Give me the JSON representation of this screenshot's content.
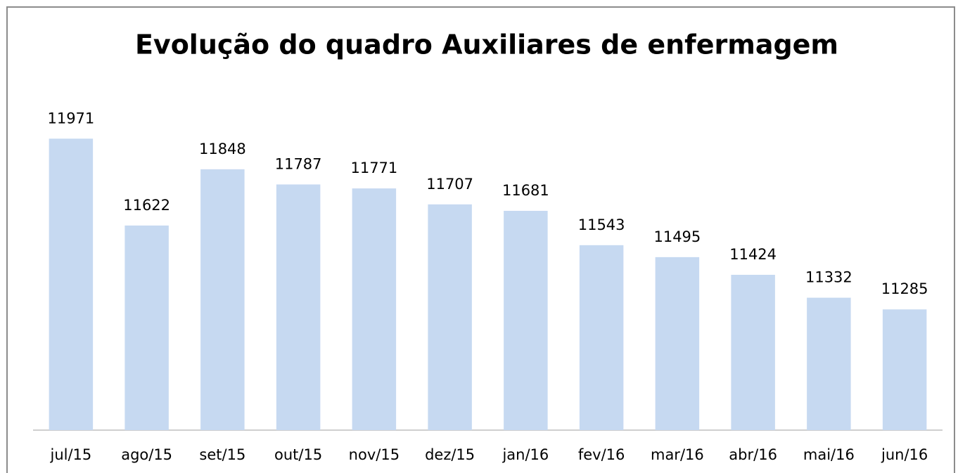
{
  "chart_data": {
    "type": "bar",
    "title": "Evolução do quadro Auxiliares de enfermagem",
    "categories": [
      "jul/15",
      "ago/15",
      "set/15",
      "out/15",
      "nov/15",
      "dez/15",
      "jan/16",
      "fev/16",
      "mar/16",
      "abr/16",
      "mai/16",
      "jun/16"
    ],
    "values": [
      11971,
      11622,
      11848,
      11787,
      11771,
      11707,
      11681,
      11543,
      11495,
      11424,
      11332,
      11285
    ],
    "color": "#c6d9f1",
    "ylim": [
      10800,
      12000
    ],
    "grid": false
  }
}
